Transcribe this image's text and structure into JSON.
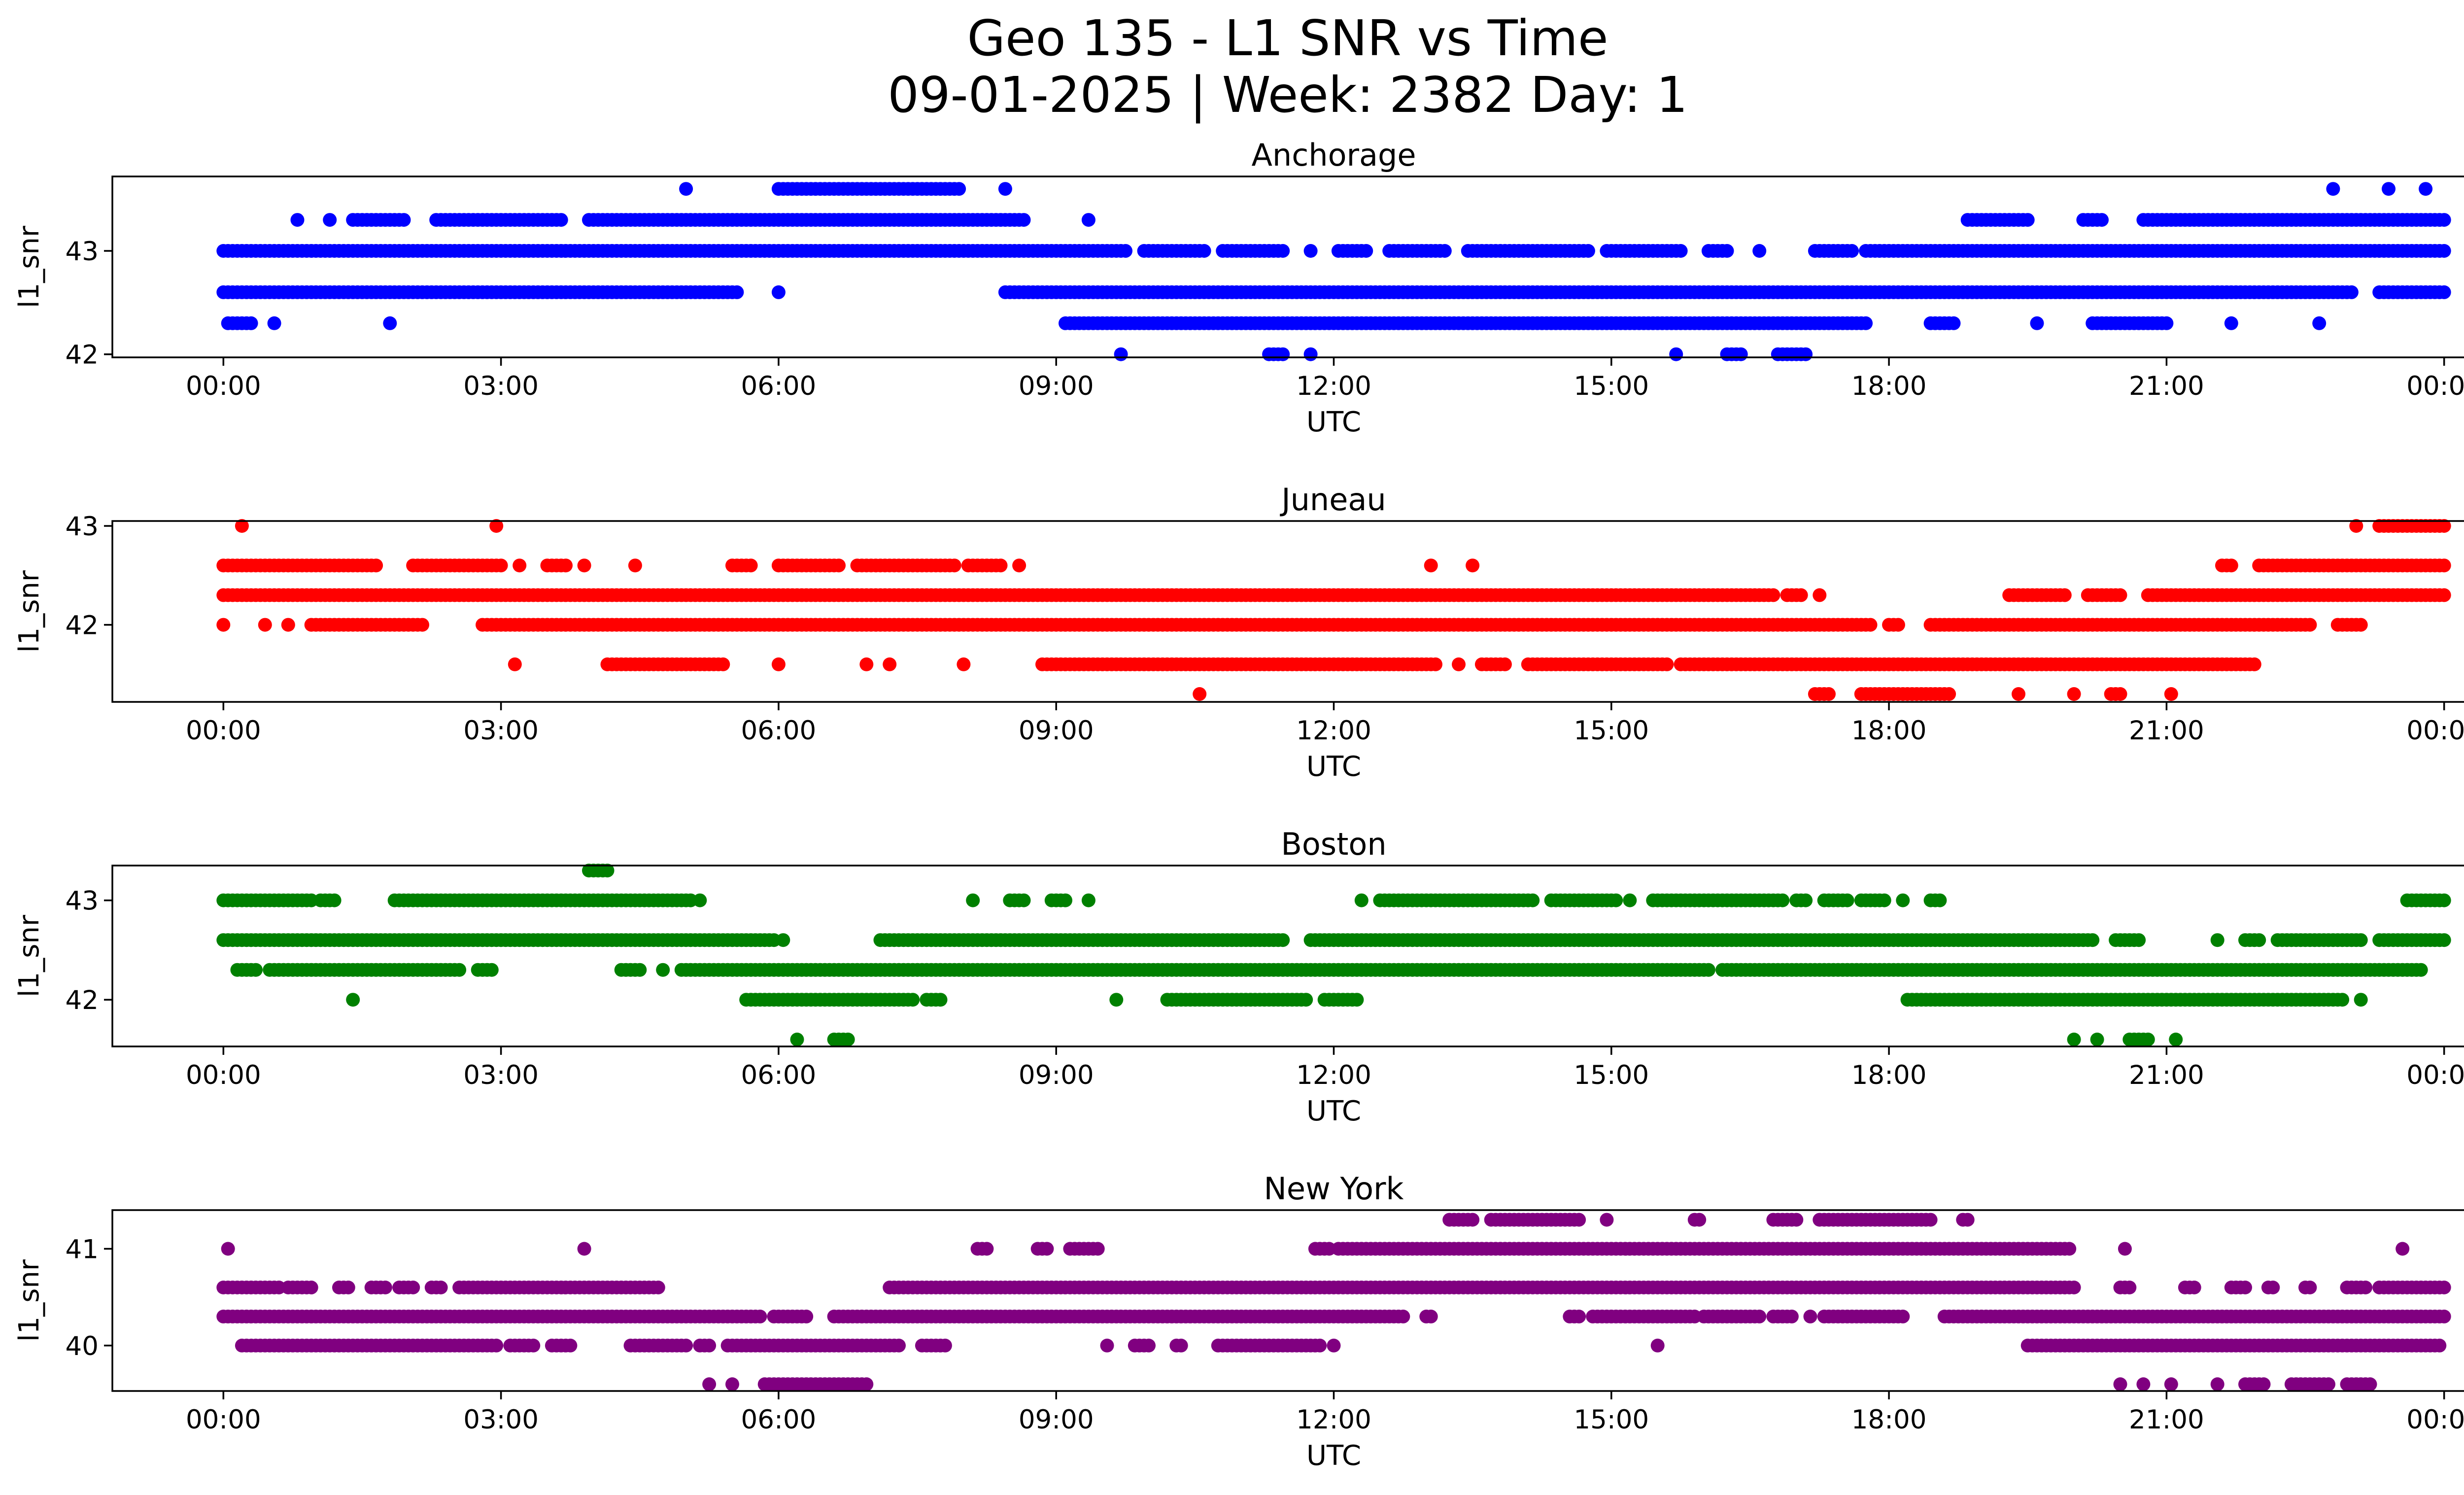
{
  "chart_data": {
    "type": "scatter",
    "title_line1": "Geo 135 - L1 SNR vs Time",
    "title_line2": "09-01-2025 | Week: 2382 Day: 1",
    "xlabel": "UTC",
    "ylabel": "l1_snr",
    "x_ticks": [
      "00:00",
      "03:00",
      "06:00",
      "09:00",
      "12:00",
      "15:00",
      "18:00",
      "21:00",
      "00:00"
    ],
    "xlim": [
      -1.2,
      25.2
    ],
    "panels": [
      {
        "name": "Anchorage",
        "color": "#0000ff",
        "ylim": [
          41.97,
          43.72
        ],
        "y_ticks": [
          42,
          43
        ],
        "y_tick_labels": [
          "42",
          "43"
        ],
        "levels": [
          {
            "y": 42.0,
            "ranges": [
              [
                9.7,
                9.7
              ],
              [
                11.3,
                11.45
              ],
              [
                11.75,
                11.75
              ],
              [
                15.7,
                15.7
              ],
              [
                16.25,
                16.4
              ],
              [
                16.8,
                17.1
              ]
            ]
          },
          {
            "y": 42.3,
            "ranges": [
              [
                0.05,
                0.3
              ],
              [
                0.55,
                0.55
              ],
              [
                1.8,
                1.8
              ],
              [
                9.1,
                17.75
              ],
              [
                18.45,
                18.7
              ],
              [
                19.6,
                19.6
              ],
              [
                20.2,
                21.0
              ],
              [
                21.7,
                21.7
              ],
              [
                22.65,
                22.65
              ]
            ]
          },
          {
            "y": 42.6,
            "ranges": [
              [
                0.0,
                5.55
              ],
              [
                6.0,
                6.0
              ],
              [
                8.45,
                23.0
              ],
              [
                23.3,
                24.0
              ]
            ]
          },
          {
            "y": 43.0,
            "ranges": [
              [
                0.0,
                9.75
              ],
              [
                9.95,
                10.6
              ],
              [
                10.8,
                11.45
              ],
              [
                11.75,
                11.75
              ],
              [
                12.05,
                12.35
              ],
              [
                12.6,
                13.2
              ],
              [
                13.45,
                14.75
              ],
              [
                14.95,
                15.75
              ],
              [
                16.05,
                16.25
              ],
              [
                16.6,
                16.6
              ],
              [
                17.2,
                17.6
              ],
              [
                17.75,
                24.0
              ]
            ]
          },
          {
            "y": 43.3,
            "ranges": [
              [
                0.8,
                0.8
              ],
              [
                1.15,
                1.15
              ],
              [
                1.4,
                1.95
              ],
              [
                2.3,
                3.65
              ],
              [
                3.95,
                8.65
              ],
              [
                9.35,
                9.35
              ],
              [
                18.85,
                19.5
              ],
              [
                20.1,
                20.3
              ],
              [
                20.75,
                24.0
              ]
            ]
          },
          {
            "y": 43.6,
            "ranges": [
              [
                5.0,
                5.0
              ],
              [
                6.0,
                7.95
              ],
              [
                8.45,
                8.45
              ],
              [
                22.8,
                22.8
              ],
              [
                23.4,
                23.4
              ],
              [
                23.8,
                23.8
              ]
            ]
          }
        ]
      },
      {
        "name": "Juneau",
        "color": "#ff0000",
        "ylim": [
          41.22,
          43.05
        ],
        "y_ticks": [
          42,
          43
        ],
        "y_tick_labels": [
          "42",
          "43"
        ],
        "levels": [
          {
            "y": 41.3,
            "ranges": [
              [
                10.55,
                10.55
              ],
              [
                17.2,
                17.35
              ],
              [
                17.7,
                18.65
              ],
              [
                19.4,
                19.4
              ],
              [
                20.0,
                20.0
              ],
              [
                20.4,
                20.5
              ],
              [
                21.05,
                21.05
              ]
            ]
          },
          {
            "y": 41.6,
            "ranges": [
              [
                3.15,
                3.15
              ],
              [
                4.15,
                5.4
              ],
              [
                6.0,
                6.0
              ],
              [
                6.95,
                6.95
              ],
              [
                7.2,
                7.2
              ],
              [
                8.0,
                8.0
              ],
              [
                8.85,
                13.1
              ],
              [
                13.35,
                13.35
              ],
              [
                13.6,
                13.85
              ],
              [
                14.1,
                15.6
              ],
              [
                15.75,
                21.95
              ]
            ]
          },
          {
            "y": 42.0,
            "ranges": [
              [
                0.0,
                0.0
              ],
              [
                0.45,
                0.45
              ],
              [
                0.7,
                0.7
              ],
              [
                0.95,
                1.15
              ],
              [
                1.2,
                2.15
              ],
              [
                2.8,
                17.8
              ],
              [
                18.0,
                18.1
              ],
              [
                18.45,
                22.55
              ],
              [
                22.85,
                23.1
              ]
            ]
          },
          {
            "y": 42.3,
            "ranges": [
              [
                0.0,
                16.75
              ],
              [
                16.9,
                17.05
              ],
              [
                17.25,
                17.25
              ],
              [
                19.3,
                19.9
              ],
              [
                20.15,
                20.5
              ],
              [
                20.8,
                24.0
              ]
            ]
          },
          {
            "y": 42.6,
            "ranges": [
              [
                0.0,
                1.65
              ],
              [
                2.05,
                3.0
              ],
              [
                3.2,
                3.2
              ],
              [
                3.5,
                3.7
              ],
              [
                3.9,
                3.9
              ],
              [
                4.45,
                4.45
              ],
              [
                5.5,
                5.7
              ],
              [
                6.0,
                6.65
              ],
              [
                6.85,
                7.9
              ],
              [
                8.05,
                8.4
              ],
              [
                8.6,
                8.6
              ],
              [
                13.05,
                13.05
              ],
              [
                13.5,
                13.5
              ],
              [
                21.6,
                21.7
              ],
              [
                22.0,
                24.0
              ]
            ]
          },
          {
            "y": 43.0,
            "ranges": [
              [
                0.2,
                0.2
              ],
              [
                2.95,
                2.95
              ],
              [
                23.05,
                23.05
              ],
              [
                23.3,
                24.0
              ]
            ]
          }
        ]
      },
      {
        "name": "Boston",
        "color": "#008000",
        "ylim": [
          41.53,
          43.35
        ],
        "y_ticks": [
          42,
          43
        ],
        "y_tick_labels": [
          "42",
          "43"
        ],
        "levels": [
          {
            "y": 41.6,
            "ranges": [
              [
                6.2,
                6.2
              ],
              [
                6.6,
                6.75
              ],
              [
                20.0,
                20.0
              ],
              [
                20.25,
                20.25
              ],
              [
                20.6,
                20.8
              ],
              [
                21.1,
                21.1
              ]
            ]
          },
          {
            "y": 42.0,
            "ranges": [
              [
                1.4,
                1.4
              ],
              [
                5.65,
                7.45
              ],
              [
                7.6,
                7.75
              ],
              [
                9.65,
                9.65
              ],
              [
                10.2,
                11.7
              ],
              [
                11.9,
                12.25
              ],
              [
                18.2,
                22.9
              ],
              [
                23.1,
                23.1
              ]
            ]
          },
          {
            "y": 42.3,
            "ranges": [
              [
                0.15,
                0.35
              ],
              [
                0.5,
                2.55
              ],
              [
                2.75,
                2.9
              ],
              [
                4.3,
                4.5
              ],
              [
                4.75,
                4.75
              ],
              [
                4.95,
                16.05
              ],
              [
                16.2,
                23.75
              ]
            ]
          },
          {
            "y": 42.6,
            "ranges": [
              [
                0.0,
                5.95
              ],
              [
                6.05,
                6.05
              ],
              [
                7.1,
                11.45
              ],
              [
                11.75,
                20.2
              ],
              [
                20.45,
                20.7
              ],
              [
                21.55,
                21.55
              ],
              [
                21.85,
                22.0
              ],
              [
                22.2,
                23.1
              ],
              [
                23.3,
                24.0
              ]
            ]
          },
          {
            "y": 43.0,
            "ranges": [
              [
                0.0,
                0.95
              ],
              [
                1.05,
                1.2
              ],
              [
                1.85,
                5.05
              ],
              [
                5.15,
                5.15
              ],
              [
                8.1,
                8.1
              ],
              [
                8.5,
                8.65
              ],
              [
                8.95,
                9.1
              ],
              [
                9.35,
                9.35
              ],
              [
                12.3,
                12.3
              ],
              [
                12.5,
                14.15
              ],
              [
                14.35,
                15.05
              ],
              [
                15.2,
                15.2
              ],
              [
                15.45,
                16.85
              ],
              [
                17.0,
                17.1
              ],
              [
                17.3,
                17.55
              ],
              [
                17.7,
                17.95
              ],
              [
                18.15,
                18.15
              ],
              [
                18.45,
                18.55
              ],
              [
                23.6,
                24.0
              ]
            ]
          },
          {
            "y": 43.3,
            "ranges": [
              [
                3.95,
                4.15
              ]
            ]
          }
        ]
      },
      {
        "name": "New York",
        "color": "#800080",
        "ylim": [
          39.53,
          41.4
        ],
        "y_ticks": [
          40,
          41
        ],
        "y_tick_labels": [
          "40",
          "41"
        ],
        "levels": [
          {
            "y": 39.6,
            "ranges": [
              [
                5.25,
                5.25
              ],
              [
                5.5,
                5.5
              ],
              [
                5.85,
                6.95
              ],
              [
                20.5,
                20.5
              ],
              [
                20.75,
                20.75
              ],
              [
                21.05,
                21.05
              ],
              [
                21.55,
                21.55
              ],
              [
                21.85,
                22.05
              ],
              [
                22.35,
                22.75
              ],
              [
                22.95,
                23.2
              ]
            ]
          },
          {
            "y": 40.0,
            "ranges": [
              [
                0.2,
                2.95
              ],
              [
                3.1,
                3.35
              ],
              [
                3.55,
                3.75
              ],
              [
                4.4,
                5.0
              ],
              [
                5.15,
                5.25
              ],
              [
                5.45,
                7.3
              ],
              [
                7.55,
                7.8
              ],
              [
                9.55,
                9.55
              ],
              [
                9.85,
                10.0
              ],
              [
                10.3,
                10.35
              ],
              [
                10.75,
                11.85
              ],
              [
                12.0,
                12.0
              ],
              [
                15.5,
                15.5
              ],
              [
                19.5,
                23.95
              ]
            ]
          },
          {
            "y": 40.3,
            "ranges": [
              [
                0.0,
                5.8
              ],
              [
                5.95,
                6.3
              ],
              [
                6.6,
                12.75
              ],
              [
                13.0,
                13.05
              ],
              [
                14.55,
                14.65
              ],
              [
                14.8,
                15.9
              ],
              [
                16.0,
                16.6
              ],
              [
                16.75,
                16.95
              ],
              [
                17.15,
                17.15
              ],
              [
                17.3,
                18.15
              ],
              [
                18.6,
                24.0
              ]
            ]
          },
          {
            "y": 40.6,
            "ranges": [
              [
                0.0,
                0.6
              ],
              [
                0.7,
                0.95
              ],
              [
                1.25,
                1.35
              ],
              [
                1.6,
                1.75
              ],
              [
                1.9,
                2.05
              ],
              [
                2.25,
                2.35
              ],
              [
                2.55,
                4.7
              ],
              [
                7.2,
                20.0
              ],
              [
                20.5,
                20.6
              ],
              [
                21.2,
                21.3
              ],
              [
                21.7,
                21.85
              ],
              [
                22.1,
                22.15
              ],
              [
                22.5,
                22.55
              ],
              [
                22.95,
                23.15
              ],
              [
                23.3,
                24.0
              ]
            ]
          },
          {
            "y": 41.0,
            "ranges": [
              [
                0.05,
                0.05
              ],
              [
                3.9,
                3.9
              ],
              [
                8.15,
                8.25
              ],
              [
                8.8,
                8.9
              ],
              [
                9.15,
                9.45
              ],
              [
                11.8,
                11.95
              ],
              [
                12.05,
                19.95
              ],
              [
                20.55,
                20.55
              ],
              [
                23.55,
                23.55
              ]
            ]
          },
          {
            "y": 41.3,
            "ranges": [
              [
                13.25,
                13.5
              ],
              [
                13.7,
                14.65
              ],
              [
                14.95,
                14.95
              ],
              [
                15.9,
                15.95
              ],
              [
                16.75,
                17.0
              ],
              [
                17.25,
                18.45
              ],
              [
                18.8,
                18.85
              ]
            ]
          }
        ]
      }
    ]
  }
}
